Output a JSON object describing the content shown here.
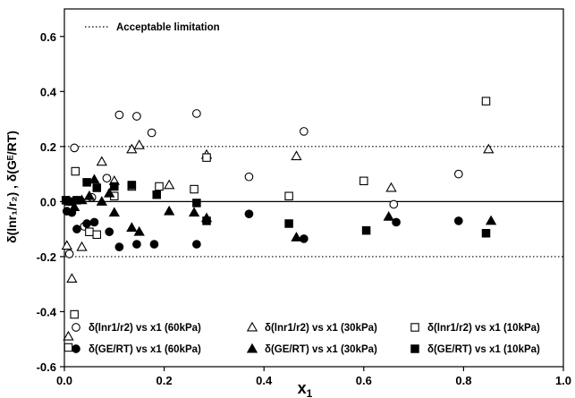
{
  "chart_data": {
    "type": "scatter",
    "xlabel": "x",
    "xlabel_sub": "1",
    "ylabel": "δ(lnr₁/r₂) , δ(Gᴱ/RT)",
    "xlim": [
      0,
      1.0
    ],
    "ylim": [
      -0.6,
      0.7
    ],
    "x_ticks": [
      0.0,
      0.2,
      0.4,
      0.6,
      0.8,
      1.0
    ],
    "x_tick_labels": [
      "0.0",
      "0.2",
      "0.4",
      "0.6",
      "0.8",
      "1.0"
    ],
    "y_ticks": [
      -0.6,
      -0.4,
      -0.2,
      0.0,
      0.2,
      0.4,
      0.6
    ],
    "y_tick_labels": [
      "-0.6",
      "-0.4",
      "-0.2",
      "0.0",
      "0.2",
      "0.4",
      "0.6"
    ],
    "grid": false,
    "acceptable_limitation": {
      "label": "Acceptable limitation",
      "values": [
        0.2,
        -0.2
      ]
    },
    "zero_line": 0.0,
    "legend_position": "bottom",
    "series": [
      {
        "name": "δ(lnr1/r2) vs x1 (60kPa)",
        "marker": "circle-open",
        "points": [
          [
            0.01,
            -0.19
          ],
          [
            0.02,
            0.195
          ],
          [
            0.04,
            -0.09
          ],
          [
            0.055,
            0.015
          ],
          [
            0.085,
            0.085
          ],
          [
            0.11,
            0.315
          ],
          [
            0.145,
            0.31
          ],
          [
            0.175,
            0.25
          ],
          [
            0.265,
            0.32
          ],
          [
            0.37,
            0.09
          ],
          [
            0.48,
            0.255
          ],
          [
            0.66,
            -0.01
          ],
          [
            0.79,
            0.1
          ]
        ]
      },
      {
        "name": "δ(lnr1/r2) vs x1 (30kPa)",
        "marker": "triangle-open",
        "points": [
          [
            0.005,
            -0.16
          ],
          [
            0.008,
            -0.49
          ],
          [
            0.015,
            -0.28
          ],
          [
            0.035,
            -0.165
          ],
          [
            0.075,
            0.145
          ],
          [
            0.1,
            0.075
          ],
          [
            0.135,
            0.19
          ],
          [
            0.15,
            0.205
          ],
          [
            0.21,
            0.06
          ],
          [
            0.285,
            0.17
          ],
          [
            0.465,
            0.165
          ],
          [
            0.655,
            0.05
          ],
          [
            0.85,
            0.19
          ]
        ]
      },
      {
        "name": "δ(lnr1/r2) vs x1 (10kPa)",
        "marker": "square-open",
        "points": [
          [
            0.008,
            -0.53
          ],
          [
            0.02,
            -0.41
          ],
          [
            0.022,
            0.11
          ],
          [
            0.05,
            -0.11
          ],
          [
            0.065,
            -0.12
          ],
          [
            0.1,
            0.02
          ],
          [
            0.135,
            0.055
          ],
          [
            0.19,
            0.055
          ],
          [
            0.26,
            0.045
          ],
          [
            0.285,
            0.16
          ],
          [
            0.45,
            0.02
          ],
          [
            0.6,
            0.075
          ],
          [
            0.845,
            0.365
          ]
        ]
      },
      {
        "name": "δ(GE/RT) vs x1 (60kPa)",
        "marker": "circle-filled",
        "points": [
          [
            0.005,
            -0.035
          ],
          [
            0.015,
            -0.04
          ],
          [
            0.025,
            -0.1
          ],
          [
            0.045,
            -0.08
          ],
          [
            0.06,
            -0.075
          ],
          [
            0.09,
            -0.11
          ],
          [
            0.11,
            -0.165
          ],
          [
            0.145,
            -0.155
          ],
          [
            0.18,
            -0.155
          ],
          [
            0.265,
            -0.155
          ],
          [
            0.37,
            -0.045
          ],
          [
            0.48,
            -0.135
          ],
          [
            0.665,
            -0.075
          ],
          [
            0.79,
            -0.07
          ]
        ]
      },
      {
        "name": "δ(GE/RT) vs x1 (30kPa)",
        "marker": "triangle-filled",
        "points": [
          [
            0.01,
            0.0
          ],
          [
            0.02,
            -0.02
          ],
          [
            0.035,
            0.005
          ],
          [
            0.05,
            0.02
          ],
          [
            0.06,
            0.08
          ],
          [
            0.075,
            0.0
          ],
          [
            0.09,
            0.03
          ],
          [
            0.1,
            -0.04
          ],
          [
            0.135,
            -0.095
          ],
          [
            0.15,
            -0.11
          ],
          [
            0.21,
            -0.035
          ],
          [
            0.26,
            -0.04
          ],
          [
            0.285,
            -0.06
          ],
          [
            0.465,
            -0.13
          ],
          [
            0.65,
            -0.055
          ],
          [
            0.855,
            -0.07
          ]
        ]
      },
      {
        "name": "δ(GE/RT) vs x1 (10kPa)",
        "marker": "square-filled",
        "points": [
          [
            0.003,
            0.005
          ],
          [
            0.015,
            0.0
          ],
          [
            0.025,
            0.005
          ],
          [
            0.045,
            0.07
          ],
          [
            0.065,
            0.05
          ],
          [
            0.1,
            0.055
          ],
          [
            0.135,
            0.06
          ],
          [
            0.185,
            0.025
          ],
          [
            0.265,
            -0.005
          ],
          [
            0.285,
            -0.07
          ],
          [
            0.45,
            -0.08
          ],
          [
            0.605,
            -0.105
          ],
          [
            0.845,
            -0.115
          ]
        ]
      }
    ]
  }
}
